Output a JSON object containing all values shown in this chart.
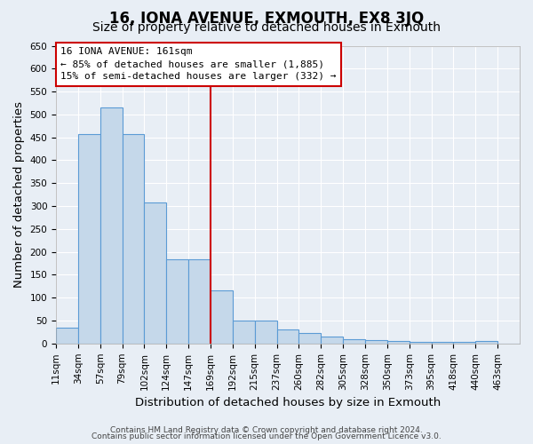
{
  "title": "16, IONA AVENUE, EXMOUTH, EX8 3JQ",
  "subtitle": "Size of property relative to detached houses in Exmouth",
  "xlabel": "Distribution of detached houses by size in Exmouth",
  "ylabel": "Number of detached properties",
  "bar_labels": [
    "11sqm",
    "34sqm",
    "57sqm",
    "79sqm",
    "102sqm",
    "124sqm",
    "147sqm",
    "169sqm",
    "192sqm",
    "215sqm",
    "237sqm",
    "260sqm",
    "282sqm",
    "305sqm",
    "328sqm",
    "350sqm",
    "373sqm",
    "395sqm",
    "418sqm",
    "440sqm",
    "463sqm"
  ],
  "bar_values": [
    35,
    457,
    515,
    457,
    308,
    183,
    183,
    115,
    50,
    50,
    30,
    22,
    15,
    10,
    8,
    5,
    3,
    3,
    3,
    5,
    0
  ],
  "bar_color": "#c5d8ea",
  "bar_edge_color": "#5b9bd5",
  "vline_x": 7,
  "vline_color": "#cc0000",
  "ylim": [
    0,
    650
  ],
  "yticks": [
    0,
    50,
    100,
    150,
    200,
    250,
    300,
    350,
    400,
    450,
    500,
    550,
    600,
    650
  ],
  "annotation_title": "16 IONA AVENUE: 161sqm",
  "annotation_line1": "← 85% of detached houses are smaller (1,885)",
  "annotation_line2": "15% of semi-detached houses are larger (332) →",
  "annotation_box_color": "#ffffff",
  "annotation_box_edge": "#cc0000",
  "footer_line1": "Contains HM Land Registry data © Crown copyright and database right 2024.",
  "footer_line2": "Contains public sector information licensed under the Open Government Licence v3.0.",
  "background_color": "#e8eef5",
  "plot_bg_color": "#e8eef5",
  "grid_color": "#ffffff",
  "title_fontsize": 12,
  "subtitle_fontsize": 10,
  "axis_label_fontsize": 9.5,
  "tick_fontsize": 7.5,
  "annotation_fontsize": 8,
  "footer_fontsize": 6.5
}
